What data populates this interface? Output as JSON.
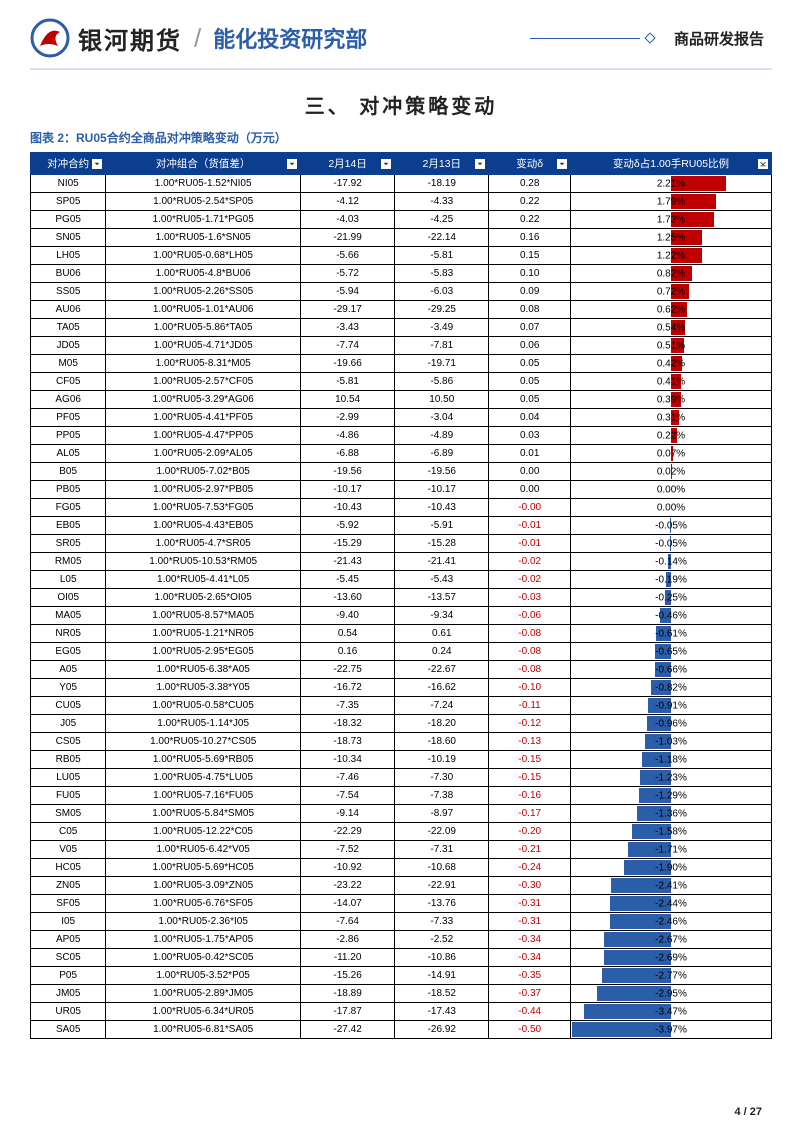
{
  "header": {
    "brand": "银河期货",
    "department": "能化投资研究部",
    "report_type": "商品研发报告"
  },
  "section_title": "三、 对冲策略变动",
  "table_caption": "图表 2：RU05合约全商品对冲策略变动（万元）",
  "columns": {
    "c0": "对冲合约",
    "c1": "对冲组合（货值差）",
    "c2": "2月14日",
    "c3": "2月13日",
    "c4": "变动δ",
    "c5": "变动δ占1.00手RU05比例"
  },
  "bar_scale_max": 4.0,
  "colors": {
    "header_bg": "#0b3e8e",
    "bar_pos": "#c00000",
    "bar_neg": "#2b5da8",
    "text_neg": "#c00000"
  },
  "rows": [
    {
      "contract": "NI05",
      "combo": "1.00*RU05-1.52*NI05",
      "d1": "-17.92",
      "d2": "-18.19",
      "delta": "0.28",
      "ratio": "2.21%",
      "ratio_val": 2.21
    },
    {
      "contract": "SP05",
      "combo": "1.00*RU05-2.54*SP05",
      "d1": "-4.12",
      "d2": "-4.33",
      "delta": "0.22",
      "ratio": "1.79%",
      "ratio_val": 1.79
    },
    {
      "contract": "PG05",
      "combo": "1.00*RU05-1.71*PG05",
      "d1": "-4.03",
      "d2": "-4.25",
      "delta": "0.22",
      "ratio": "1.73%",
      "ratio_val": 1.73
    },
    {
      "contract": "SN05",
      "combo": "1.00*RU05-1.6*SN05",
      "d1": "-21.99",
      "d2": "-22.14",
      "delta": "0.16",
      "ratio": "1.25%",
      "ratio_val": 1.25
    },
    {
      "contract": "LH05",
      "combo": "1.00*RU05-0.68*LH05",
      "d1": "-5.66",
      "d2": "-5.81",
      "delta": "0.15",
      "ratio": "1.22%",
      "ratio_val": 1.22
    },
    {
      "contract": "BU06",
      "combo": "1.00*RU05-4.8*BU06",
      "d1": "-5.72",
      "d2": "-5.83",
      "delta": "0.10",
      "ratio": "0.82%",
      "ratio_val": 0.82
    },
    {
      "contract": "SS05",
      "combo": "1.00*RU05-2.26*SS05",
      "d1": "-5.94",
      "d2": "-6.03",
      "delta": "0.09",
      "ratio": "0.72%",
      "ratio_val": 0.72
    },
    {
      "contract": "AU06",
      "combo": "1.00*RU05-1.01*AU06",
      "d1": "-29.17",
      "d2": "-29.25",
      "delta": "0.08",
      "ratio": "0.62%",
      "ratio_val": 0.62
    },
    {
      "contract": "TA05",
      "combo": "1.00*RU05-5.86*TA05",
      "d1": "-3.43",
      "d2": "-3.49",
      "delta": "0.07",
      "ratio": "0.54%",
      "ratio_val": 0.54
    },
    {
      "contract": "JD05",
      "combo": "1.00*RU05-4.71*JD05",
      "d1": "-7.74",
      "d2": "-7.81",
      "delta": "0.06",
      "ratio": "0.51%",
      "ratio_val": 0.51
    },
    {
      "contract": "M05",
      "combo": "1.00*RU05-8.31*M05",
      "d1": "-19.66",
      "d2": "-19.71",
      "delta": "0.05",
      "ratio": "0.42%",
      "ratio_val": 0.42
    },
    {
      "contract": "CF05",
      "combo": "1.00*RU05-2.57*CF05",
      "d1": "-5.81",
      "d2": "-5.86",
      "delta": "0.05",
      "ratio": "0.41%",
      "ratio_val": 0.41
    },
    {
      "contract": "AG06",
      "combo": "1.00*RU05-3.29*AG06",
      "d1": "10.54",
      "d2": "10.50",
      "delta": "0.05",
      "ratio": "0.39%",
      "ratio_val": 0.39
    },
    {
      "contract": "PF05",
      "combo": "1.00*RU05-4.41*PF05",
      "d1": "-2.99",
      "d2": "-3.04",
      "delta": "0.04",
      "ratio": "0.31%",
      "ratio_val": 0.31
    },
    {
      "contract": "PP05",
      "combo": "1.00*RU05-4.47*PP05",
      "d1": "-4.86",
      "d2": "-4.89",
      "delta": "0.03",
      "ratio": "0.22%",
      "ratio_val": 0.22
    },
    {
      "contract": "AL05",
      "combo": "1.00*RU05-2.09*AL05",
      "d1": "-6.88",
      "d2": "-6.89",
      "delta": "0.01",
      "ratio": "0.07%",
      "ratio_val": 0.07
    },
    {
      "contract": "B05",
      "combo": "1.00*RU05-7.02*B05",
      "d1": "-19.56",
      "d2": "-19.56",
      "delta": "0.00",
      "ratio": "0.02%",
      "ratio_val": 0.02
    },
    {
      "contract": "PB05",
      "combo": "1.00*RU05-2.97*PB05",
      "d1": "-10.17",
      "d2": "-10.17",
      "delta": "0.00",
      "ratio": "0.00%",
      "ratio_val": 0.0
    },
    {
      "contract": "FG05",
      "combo": "1.00*RU05-7.53*FG05",
      "d1": "-10.43",
      "d2": "-10.43",
      "delta": "-0.00",
      "ratio": "0.00%",
      "ratio_val": 0.0,
      "neg": true
    },
    {
      "contract": "EB05",
      "combo": "1.00*RU05-4.43*EB05",
      "d1": "-5.92",
      "d2": "-5.91",
      "delta": "-0.01",
      "ratio": "-0.05%",
      "ratio_val": -0.05,
      "neg": true
    },
    {
      "contract": "SR05",
      "combo": "1.00*RU05-4.7*SR05",
      "d1": "-15.29",
      "d2": "-15.28",
      "delta": "-0.01",
      "ratio": "-0.05%",
      "ratio_val": -0.05,
      "neg": true
    },
    {
      "contract": "RM05",
      "combo": "1.00*RU05-10.53*RM05",
      "d1": "-21.43",
      "d2": "-21.41",
      "delta": "-0.02",
      "ratio": "-0.14%",
      "ratio_val": -0.14,
      "neg": true
    },
    {
      "contract": "L05",
      "combo": "1.00*RU05-4.41*L05",
      "d1": "-5.45",
      "d2": "-5.43",
      "delta": "-0.02",
      "ratio": "-0.19%",
      "ratio_val": -0.19,
      "neg": true
    },
    {
      "contract": "OI05",
      "combo": "1.00*RU05-2.65*OI05",
      "d1": "-13.60",
      "d2": "-13.57",
      "delta": "-0.03",
      "ratio": "-0.25%",
      "ratio_val": -0.25,
      "neg": true
    },
    {
      "contract": "MA05",
      "combo": "1.00*RU05-8.57*MA05",
      "d1": "-9.40",
      "d2": "-9.34",
      "delta": "-0.06",
      "ratio": "-0.46%",
      "ratio_val": -0.46,
      "neg": true
    },
    {
      "contract": "NR05",
      "combo": "1.00*RU05-1.21*NR05",
      "d1": "0.54",
      "d2": "0.61",
      "delta": "-0.08",
      "ratio": "-0.61%",
      "ratio_val": -0.61,
      "neg": true
    },
    {
      "contract": "EG05",
      "combo": "1.00*RU05-2.95*EG05",
      "d1": "0.16",
      "d2": "0.24",
      "delta": "-0.08",
      "ratio": "-0.65%",
      "ratio_val": -0.65,
      "neg": true
    },
    {
      "contract": "A05",
      "combo": "1.00*RU05-6.38*A05",
      "d1": "-22.75",
      "d2": "-22.67",
      "delta": "-0.08",
      "ratio": "-0.66%",
      "ratio_val": -0.66,
      "neg": true
    },
    {
      "contract": "Y05",
      "combo": "1.00*RU05-3.38*Y05",
      "d1": "-16.72",
      "d2": "-16.62",
      "delta": "-0.10",
      "ratio": "-0.82%",
      "ratio_val": -0.82,
      "neg": true
    },
    {
      "contract": "CU05",
      "combo": "1.00*RU05-0.58*CU05",
      "d1": "-7.35",
      "d2": "-7.24",
      "delta": "-0.11",
      "ratio": "-0.91%",
      "ratio_val": -0.91,
      "neg": true
    },
    {
      "contract": "J05",
      "combo": "1.00*RU05-1.14*J05",
      "d1": "-18.32",
      "d2": "-18.20",
      "delta": "-0.12",
      "ratio": "-0.96%",
      "ratio_val": -0.96,
      "neg": true
    },
    {
      "contract": "CS05",
      "combo": "1.00*RU05-10.27*CS05",
      "d1": "-18.73",
      "d2": "-18.60",
      "delta": "-0.13",
      "ratio": "-1.03%",
      "ratio_val": -1.03,
      "neg": true
    },
    {
      "contract": "RB05",
      "combo": "1.00*RU05-5.69*RB05",
      "d1": "-10.34",
      "d2": "-10.19",
      "delta": "-0.15",
      "ratio": "-1.18%",
      "ratio_val": -1.18,
      "neg": true
    },
    {
      "contract": "LU05",
      "combo": "1.00*RU05-4.75*LU05",
      "d1": "-7.46",
      "d2": "-7.30",
      "delta": "-0.15",
      "ratio": "-1.23%",
      "ratio_val": -1.23,
      "neg": true
    },
    {
      "contract": "FU05",
      "combo": "1.00*RU05-7.16*FU05",
      "d1": "-7.54",
      "d2": "-7.38",
      "delta": "-0.16",
      "ratio": "-1.29%",
      "ratio_val": -1.29,
      "neg": true
    },
    {
      "contract": "SM05",
      "combo": "1.00*RU05-5.84*SM05",
      "d1": "-9.14",
      "d2": "-8.97",
      "delta": "-0.17",
      "ratio": "-1.36%",
      "ratio_val": -1.36,
      "neg": true
    },
    {
      "contract": "C05",
      "combo": "1.00*RU05-12.22*C05",
      "d1": "-22.29",
      "d2": "-22.09",
      "delta": "-0.20",
      "ratio": "-1.58%",
      "ratio_val": -1.58,
      "neg": true
    },
    {
      "contract": "V05",
      "combo": "1.00*RU05-6.42*V05",
      "d1": "-7.52",
      "d2": "-7.31",
      "delta": "-0.21",
      "ratio": "-1.71%",
      "ratio_val": -1.71,
      "neg": true
    },
    {
      "contract": "HC05",
      "combo": "1.00*RU05-5.69*HC05",
      "d1": "-10.92",
      "d2": "-10.68",
      "delta": "-0.24",
      "ratio": "-1.90%",
      "ratio_val": -1.9,
      "neg": true
    },
    {
      "contract": "ZN05",
      "combo": "1.00*RU05-3.09*ZN05",
      "d1": "-23.22",
      "d2": "-22.91",
      "delta": "-0.30",
      "ratio": "-2.41%",
      "ratio_val": -2.41,
      "neg": true
    },
    {
      "contract": "SF05",
      "combo": "1.00*RU05-6.76*SF05",
      "d1": "-14.07",
      "d2": "-13.76",
      "delta": "-0.31",
      "ratio": "-2.44%",
      "ratio_val": -2.44,
      "neg": true
    },
    {
      "contract": "I05",
      "combo": "1.00*RU05-2.36*I05",
      "d1": "-7.64",
      "d2": "-7.33",
      "delta": "-0.31",
      "ratio": "-2.46%",
      "ratio_val": -2.46,
      "neg": true
    },
    {
      "contract": "AP05",
      "combo": "1.00*RU05-1.75*AP05",
      "d1": "-2.86",
      "d2": "-2.52",
      "delta": "-0.34",
      "ratio": "-2.67%",
      "ratio_val": -2.67,
      "neg": true
    },
    {
      "contract": "SC05",
      "combo": "1.00*RU05-0.42*SC05",
      "d1": "-11.20",
      "d2": "-10.86",
      "delta": "-0.34",
      "ratio": "-2.69%",
      "ratio_val": -2.69,
      "neg": true
    },
    {
      "contract": "P05",
      "combo": "1.00*RU05-3.52*P05",
      "d1": "-15.26",
      "d2": "-14.91",
      "delta": "-0.35",
      "ratio": "-2.77%",
      "ratio_val": -2.77,
      "neg": true
    },
    {
      "contract": "JM05",
      "combo": "1.00*RU05-2.89*JM05",
      "d1": "-18.89",
      "d2": "-18.52",
      "delta": "-0.37",
      "ratio": "-2.95%",
      "ratio_val": -2.95,
      "neg": true
    },
    {
      "contract": "UR05",
      "combo": "1.00*RU05-6.34*UR05",
      "d1": "-17.87",
      "d2": "-17.43",
      "delta": "-0.44",
      "ratio": "-3.47%",
      "ratio_val": -3.47,
      "neg": true
    },
    {
      "contract": "SA05",
      "combo": "1.00*RU05-6.81*SA05",
      "d1": "-27.42",
      "d2": "-26.92",
      "delta": "-0.50",
      "ratio": "-3.97%",
      "ratio_val": -3.97,
      "neg": true
    }
  ],
  "footer": {
    "page": "4",
    "total": "27"
  }
}
